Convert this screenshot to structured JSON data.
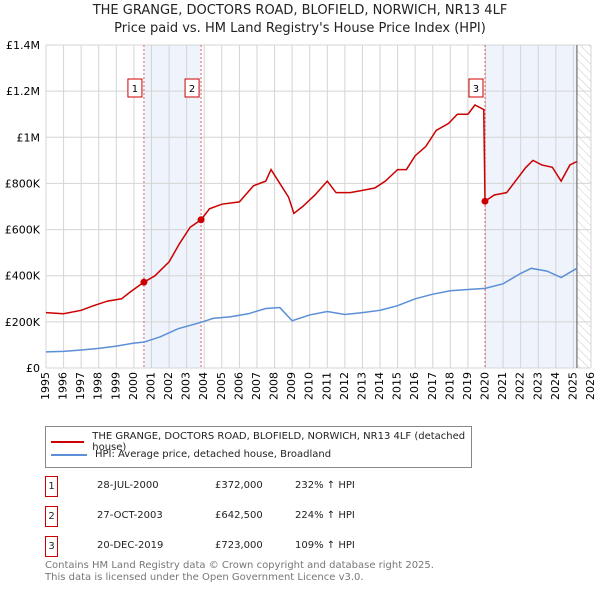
{
  "chart_data": {
    "type": "line",
    "title": "THE GRANGE, DOCTORS ROAD, BLOFIELD, NORWICH, NR13 4LF",
    "subtitle": "Price paid vs. HM Land Registry's House Price Index (HPI)",
    "xlim": [
      1995,
      2026
    ],
    "ylim": [
      0,
      1400000
    ],
    "x_ticks": [
      "1995",
      "1996",
      "1997",
      "1998",
      "1999",
      "2000",
      "2001",
      "2002",
      "2003",
      "2004",
      "2005",
      "2006",
      "2007",
      "2008",
      "2009",
      "2010",
      "2011",
      "2012",
      "2013",
      "2014",
      "2015",
      "2016",
      "2017",
      "2018",
      "2019",
      "2020",
      "2021",
      "2022",
      "2023",
      "2024",
      "2025",
      "2026"
    ],
    "y_ticks": [
      {
        "v": 0,
        "label": "£0"
      },
      {
        "v": 200000,
        "label": "£200K"
      },
      {
        "v": 400000,
        "label": "£400K"
      },
      {
        "v": 600000,
        "label": "£600K"
      },
      {
        "v": 800000,
        "label": "£800K"
      },
      {
        "v": 1000000,
        "label": "£1M"
      },
      {
        "v": 1200000,
        "label": "£1.2M"
      },
      {
        "v": 1400000,
        "label": "£1.4M"
      }
    ],
    "grid": true,
    "series": [
      {
        "name": "THE GRANGE, DOCTORS ROAD, BLOFIELD, NORWICH, NR13 4LF (detached house)",
        "color": "#cc0000",
        "points": [
          [
            1995,
            240000
          ],
          [
            1996,
            235000
          ],
          [
            1997,
            250000
          ],
          [
            1997.7,
            270000
          ],
          [
            1998.5,
            290000
          ],
          [
            1999.3,
            300000
          ],
          [
            1999.8,
            330000
          ],
          [
            2000.57,
            372000
          ],
          [
            2001.2,
            400000
          ],
          [
            2002,
            460000
          ],
          [
            2002.6,
            540000
          ],
          [
            2003.2,
            610000
          ],
          [
            2003.82,
            642500
          ],
          [
            2004.3,
            690000
          ],
          [
            2005,
            710000
          ],
          [
            2006,
            720000
          ],
          [
            2006.8,
            790000
          ],
          [
            2007.5,
            810000
          ],
          [
            2007.8,
            860000
          ],
          [
            2008.3,
            800000
          ],
          [
            2008.8,
            740000
          ],
          [
            2009.1,
            670000
          ],
          [
            2009.6,
            700000
          ],
          [
            2010.3,
            750000
          ],
          [
            2011,
            810000
          ],
          [
            2011.5,
            760000
          ],
          [
            2012.3,
            760000
          ],
          [
            2013,
            770000
          ],
          [
            2013.7,
            780000
          ],
          [
            2014.3,
            810000
          ],
          [
            2015,
            860000
          ],
          [
            2015.5,
            860000
          ],
          [
            2016,
            920000
          ],
          [
            2016.6,
            960000
          ],
          [
            2017.2,
            1030000
          ],
          [
            2017.9,
            1060000
          ],
          [
            2018.4,
            1100000
          ],
          [
            2019,
            1100000
          ],
          [
            2019.4,
            1140000
          ],
          [
            2019.9,
            1120000
          ],
          [
            2019.97,
            723000
          ],
          [
            2020.5,
            750000
          ],
          [
            2021.2,
            760000
          ],
          [
            2021.8,
            820000
          ],
          [
            2022.3,
            870000
          ],
          [
            2022.7,
            900000
          ],
          [
            2023.2,
            880000
          ],
          [
            2023.8,
            870000
          ],
          [
            2024.3,
            810000
          ],
          [
            2024.8,
            880000
          ],
          [
            2025.2,
            895000
          ]
        ]
      },
      {
        "name": "HPI: Average price, detached house, Broadland",
        "color": "#5b8fd6",
        "points": [
          [
            1995,
            70000
          ],
          [
            1996,
            72000
          ],
          [
            1997,
            78000
          ],
          [
            1998,
            85000
          ],
          [
            1999,
            95000
          ],
          [
            2000,
            108000
          ],
          [
            2000.57,
            112000
          ],
          [
            2001.5,
            135000
          ],
          [
            2002.5,
            170000
          ],
          [
            2003.82,
            198000
          ],
          [
            2004.5,
            215000
          ],
          [
            2005.5,
            222000
          ],
          [
            2006.5,
            235000
          ],
          [
            2007.5,
            258000
          ],
          [
            2008.3,
            262000
          ],
          [
            2009,
            205000
          ],
          [
            2010,
            230000
          ],
          [
            2011,
            245000
          ],
          [
            2012,
            232000
          ],
          [
            2013,
            240000
          ],
          [
            2014,
            250000
          ],
          [
            2015,
            270000
          ],
          [
            2016,
            300000
          ],
          [
            2017,
            320000
          ],
          [
            2018,
            335000
          ],
          [
            2019,
            340000
          ],
          [
            2019.97,
            345000
          ],
          [
            2021,
            365000
          ],
          [
            2022,
            410000
          ],
          [
            2022.6,
            432000
          ],
          [
            2023.5,
            420000
          ],
          [
            2024.3,
            392000
          ],
          [
            2025.2,
            432000
          ]
        ]
      }
    ],
    "sales": [
      {
        "id": "1",
        "date": "28-JUL-2000",
        "x": 2000.57,
        "price": 372000,
        "price_label": "£372,000",
        "hpi_change": "232% ↑ HPI"
      },
      {
        "id": "2",
        "date": "27-OCT-2003",
        "x": 2003.82,
        "price": 642500,
        "price_label": "£642,500",
        "hpi_change": "224% ↑ HPI"
      },
      {
        "id": "3",
        "date": "20-DEC-2019",
        "x": 2019.97,
        "price": 723000,
        "price_label": "£723,000",
        "hpi_change": "109% ↑ HPI"
      }
    ],
    "shaded_ranges": [
      [
        2000.57,
        2003.82
      ],
      [
        2019.97,
        2025.2
      ]
    ],
    "forecast_hatch_from": 2025.2
  },
  "footer": {
    "line1": "Contains HM Land Registry data © Crown copyright and database right 2025.",
    "line2": "This data is licensed under the Open Government Licence v3.0."
  }
}
